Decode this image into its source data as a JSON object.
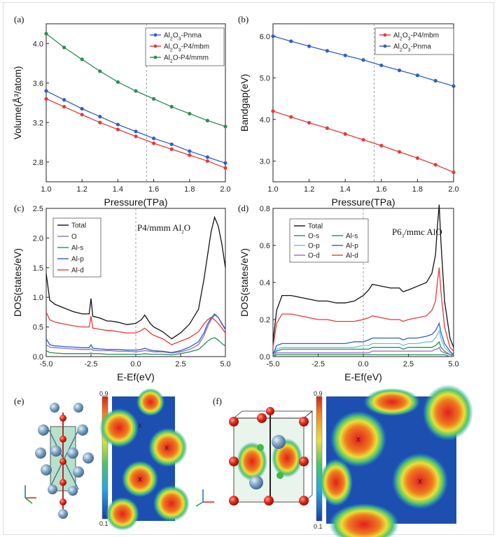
{
  "chart_data": [
    {
      "panel": "(a)",
      "type": "line",
      "xlabel": "Pressure(TPa)",
      "ylabel": "Volume(Å³/atom)",
      "xlim": [
        1.0,
        2.0
      ],
      "ylim": [
        2.6,
        4.2
      ],
      "xticks": [
        1.0,
        1.2,
        1.4,
        1.6,
        1.8,
        2.0
      ],
      "yticks": [
        2.8,
        3.2,
        3.6,
        4.0
      ],
      "vline": 1.56,
      "legend_position": "top-right",
      "x": [
        1.0,
        1.1,
        1.2,
        1.3,
        1.4,
        1.5,
        1.6,
        1.7,
        1.8,
        1.9,
        2.0
      ],
      "series": [
        {
          "name": "Al2O3-Pnma",
          "color": "#2f5fc6",
          "values": [
            3.52,
            3.43,
            3.34,
            3.26,
            3.18,
            3.11,
            3.04,
            2.98,
            2.91,
            2.85,
            2.79
          ]
        },
        {
          "name": "Al2O3-P4/mbm",
          "color": "#e23b3b",
          "values": [
            3.44,
            3.36,
            3.28,
            3.2,
            3.13,
            3.06,
            2.99,
            2.93,
            2.87,
            2.81,
            2.74
          ]
        },
        {
          "name": "Al2O-P4/mmm",
          "color": "#2e8b57",
          "values": [
            4.1,
            3.96,
            3.84,
            3.72,
            3.61,
            3.52,
            3.44,
            3.36,
            3.29,
            3.22,
            3.16
          ]
        }
      ]
    },
    {
      "panel": "(b)",
      "type": "line",
      "xlabel": "Pressure(TPa)",
      "ylabel": "Bandgap(eV)",
      "xlim": [
        1.0,
        2.0
      ],
      "ylim": [
        2.5,
        6.3
      ],
      "xticks": [
        1.0,
        1.2,
        1.4,
        1.6,
        1.8,
        2.0
      ],
      "yticks": [
        3.0,
        4.0,
        5.0,
        6.0
      ],
      "vline": 1.56,
      "legend_position": "top-right",
      "x": [
        1.0,
        1.1,
        1.2,
        1.3,
        1.4,
        1.5,
        1.6,
        1.7,
        1.8,
        1.9,
        2.0
      ],
      "series": [
        {
          "name": "Al2O3-P4/mbm",
          "color": "#e23b3b",
          "values": [
            4.2,
            4.06,
            3.92,
            3.79,
            3.65,
            3.51,
            3.37,
            3.22,
            3.07,
            2.91,
            2.73
          ]
        },
        {
          "name": "Al2O3-Pnma",
          "color": "#2f5fc6",
          "values": [
            6.0,
            5.88,
            5.76,
            5.65,
            5.54,
            5.43,
            5.3,
            5.18,
            5.06,
            4.93,
            4.8
          ]
        }
      ]
    },
    {
      "panel": "(c)",
      "type": "line",
      "xlabel": "E-Ef(eV)",
      "ylabel": "DOS(states/eV)",
      "xlim": [
        -5.0,
        5.0
      ],
      "ylim": [
        0.0,
        2.5
      ],
      "xticks": [
        -5.0,
        -2.5,
        0.0,
        2.5,
        5.0
      ],
      "yticks": [
        0.0,
        0.5,
        1.0,
        1.5,
        2.0,
        2.5
      ],
      "vline": 0.0,
      "annotation": "P4/mmm Al2O",
      "legend_position": "top-left",
      "x": [
        -5.0,
        -4.8,
        -4.5,
        -4.0,
        -3.5,
        -3.0,
        -2.6,
        -2.5,
        -2.4,
        -2.0,
        -1.6,
        -1.4,
        -1.0,
        -0.5,
        0.0,
        0.3,
        0.5,
        0.8,
        1.0,
        1.5,
        2.0,
        2.5,
        3.0,
        3.5,
        3.8,
        4.0,
        4.2,
        4.4,
        4.6,
        4.8,
        5.0
      ],
      "series": [
        {
          "name": "Total",
          "color": "#111111",
          "values": [
            1.4,
            0.95,
            0.88,
            0.82,
            0.76,
            0.72,
            0.72,
            0.98,
            0.68,
            0.65,
            0.6,
            0.6,
            0.58,
            0.54,
            0.56,
            0.62,
            0.7,
            0.56,
            0.5,
            0.42,
            0.3,
            0.4,
            0.55,
            0.8,
            1.3,
            1.7,
            2.1,
            2.35,
            2.2,
            1.9,
            1.5
          ]
        },
        {
          "name": "O",
          "color": "#8e6fc4",
          "values": [
            0.2,
            0.16,
            0.15,
            0.14,
            0.13,
            0.12,
            0.12,
            0.13,
            0.11,
            0.1,
            0.1,
            0.1,
            0.09,
            0.09,
            0.08,
            0.09,
            0.1,
            0.09,
            0.08,
            0.08,
            0.06,
            0.08,
            0.12,
            0.2,
            0.35,
            0.5,
            0.62,
            0.7,
            0.66,
            0.55,
            0.45
          ]
        },
        {
          "name": "Al-s",
          "color": "#2e8b57",
          "values": [
            0.1,
            0.07,
            0.06,
            0.05,
            0.05,
            0.05,
            0.05,
            0.06,
            0.05,
            0.05,
            0.04,
            0.04,
            0.04,
            0.04,
            0.04,
            0.04,
            0.05,
            0.04,
            0.04,
            0.04,
            0.03,
            0.05,
            0.08,
            0.12,
            0.2,
            0.26,
            0.3,
            0.32,
            0.28,
            0.22,
            0.18
          ]
        },
        {
          "name": "Al-p",
          "color": "#2f5fc6",
          "values": [
            0.3,
            0.2,
            0.18,
            0.17,
            0.16,
            0.15,
            0.15,
            0.2,
            0.14,
            0.13,
            0.12,
            0.12,
            0.12,
            0.11,
            0.11,
            0.12,
            0.14,
            0.11,
            0.1,
            0.09,
            0.07,
            0.1,
            0.16,
            0.25,
            0.4,
            0.55,
            0.65,
            0.72,
            0.66,
            0.56,
            0.46
          ]
        },
        {
          "name": "Al-d",
          "color": "#e23b3b",
          "values": [
            0.75,
            0.62,
            0.58,
            0.55,
            0.52,
            0.5,
            0.5,
            0.68,
            0.48,
            0.46,
            0.44,
            0.44,
            0.42,
            0.4,
            0.4,
            0.44,
            0.48,
            0.4,
            0.36,
            0.3,
            0.2,
            0.26,
            0.32,
            0.42,
            0.55,
            0.62,
            0.66,
            0.62,
            0.56,
            0.48,
            0.4
          ]
        }
      ]
    },
    {
      "panel": "(d)",
      "type": "line",
      "xlabel": "E-Ef(eV)",
      "ylabel": "DOS(states/eV)",
      "xlim": [
        -5.0,
        5.0
      ],
      "ylim": [
        0.0,
        0.8
      ],
      "xticks": [
        -5.0,
        -2.5,
        0.0,
        2.5,
        5.0
      ],
      "yticks": [
        0.0,
        0.2,
        0.4,
        0.6,
        0.8
      ],
      "vline": 0.0,
      "annotation": "P63/mmc AlO",
      "legend_position": "top-left",
      "x": [
        -5.0,
        -4.8,
        -4.5,
        -4.0,
        -3.5,
        -3.0,
        -2.5,
        -2.0,
        -1.5,
        -1.0,
        -0.5,
        0.0,
        0.3,
        0.5,
        1.0,
        1.5,
        2.0,
        2.2,
        2.5,
        3.0,
        3.5,
        3.8,
        4.0,
        4.1,
        4.2,
        4.3,
        4.5,
        4.8,
        5.0
      ],
      "series": [
        {
          "name": "Total",
          "color": "#111111",
          "values": [
            0.08,
            0.25,
            0.33,
            0.33,
            0.32,
            0.31,
            0.3,
            0.3,
            0.29,
            0.29,
            0.3,
            0.33,
            0.36,
            0.39,
            0.38,
            0.37,
            0.37,
            0.35,
            0.36,
            0.38,
            0.4,
            0.45,
            0.55,
            0.7,
            0.82,
            0.62,
            0.3,
            0.1,
            0.05
          ]
        },
        {
          "name": "O-s",
          "color": "#2e8b57",
          "values": [
            0.0,
            0.01,
            0.01,
            0.01,
            0.01,
            0.01,
            0.01,
            0.01,
            0.01,
            0.01,
            0.01,
            0.01,
            0.01,
            0.01,
            0.01,
            0.01,
            0.01,
            0.01,
            0.01,
            0.01,
            0.01,
            0.01,
            0.01,
            0.01,
            0.01,
            0.01,
            0.01,
            0.0,
            0.0
          ]
        },
        {
          "name": "Al-s",
          "color": "#2e8b57",
          "values": [
            0.01,
            0.03,
            0.04,
            0.04,
            0.04,
            0.04,
            0.04,
            0.04,
            0.04,
            0.04,
            0.04,
            0.04,
            0.04,
            0.05,
            0.05,
            0.05,
            0.05,
            0.04,
            0.05,
            0.05,
            0.05,
            0.05,
            0.06,
            0.07,
            0.08,
            0.05,
            0.03,
            0.01,
            0.01
          ]
        },
        {
          "name": "O-p",
          "color": "#6cc0d8",
          "values": [
            0.01,
            0.04,
            0.05,
            0.05,
            0.05,
            0.05,
            0.05,
            0.05,
            0.05,
            0.05,
            0.05,
            0.06,
            0.06,
            0.07,
            0.07,
            0.07,
            0.07,
            0.06,
            0.07,
            0.07,
            0.08,
            0.08,
            0.1,
            0.12,
            0.14,
            0.1,
            0.05,
            0.02,
            0.01
          ]
        },
        {
          "name": "Al-p",
          "color": "#2f5fc6",
          "values": [
            0.01,
            0.06,
            0.07,
            0.07,
            0.07,
            0.07,
            0.07,
            0.07,
            0.07,
            0.07,
            0.08,
            0.08,
            0.09,
            0.1,
            0.1,
            0.1,
            0.1,
            0.09,
            0.1,
            0.1,
            0.11,
            0.12,
            0.14,
            0.16,
            0.18,
            0.13,
            0.07,
            0.03,
            0.01
          ]
        },
        {
          "name": "O-d",
          "color": "#8e6fc4",
          "values": [
            0.0,
            0.02,
            0.02,
            0.02,
            0.02,
            0.02,
            0.02,
            0.02,
            0.02,
            0.02,
            0.02,
            0.02,
            0.02,
            0.03,
            0.03,
            0.03,
            0.03,
            0.03,
            0.03,
            0.03,
            0.03,
            0.03,
            0.04,
            0.04,
            0.05,
            0.03,
            0.02,
            0.01,
            0.0
          ]
        },
        {
          "name": "Al-d",
          "color": "#e23b3b",
          "values": [
            0.05,
            0.18,
            0.23,
            0.23,
            0.22,
            0.21,
            0.2,
            0.2,
            0.19,
            0.19,
            0.19,
            0.2,
            0.21,
            0.22,
            0.21,
            0.2,
            0.2,
            0.19,
            0.2,
            0.21,
            0.22,
            0.25,
            0.3,
            0.4,
            0.48,
            0.35,
            0.16,
            0.05,
            0.03
          ]
        }
      ]
    }
  ],
  "panels_e_f": {
    "label_e": "(e)",
    "label_f": "(f)",
    "colorbar_max": "0.9",
    "colorbar_min": "0.1",
    "marker": "X"
  }
}
